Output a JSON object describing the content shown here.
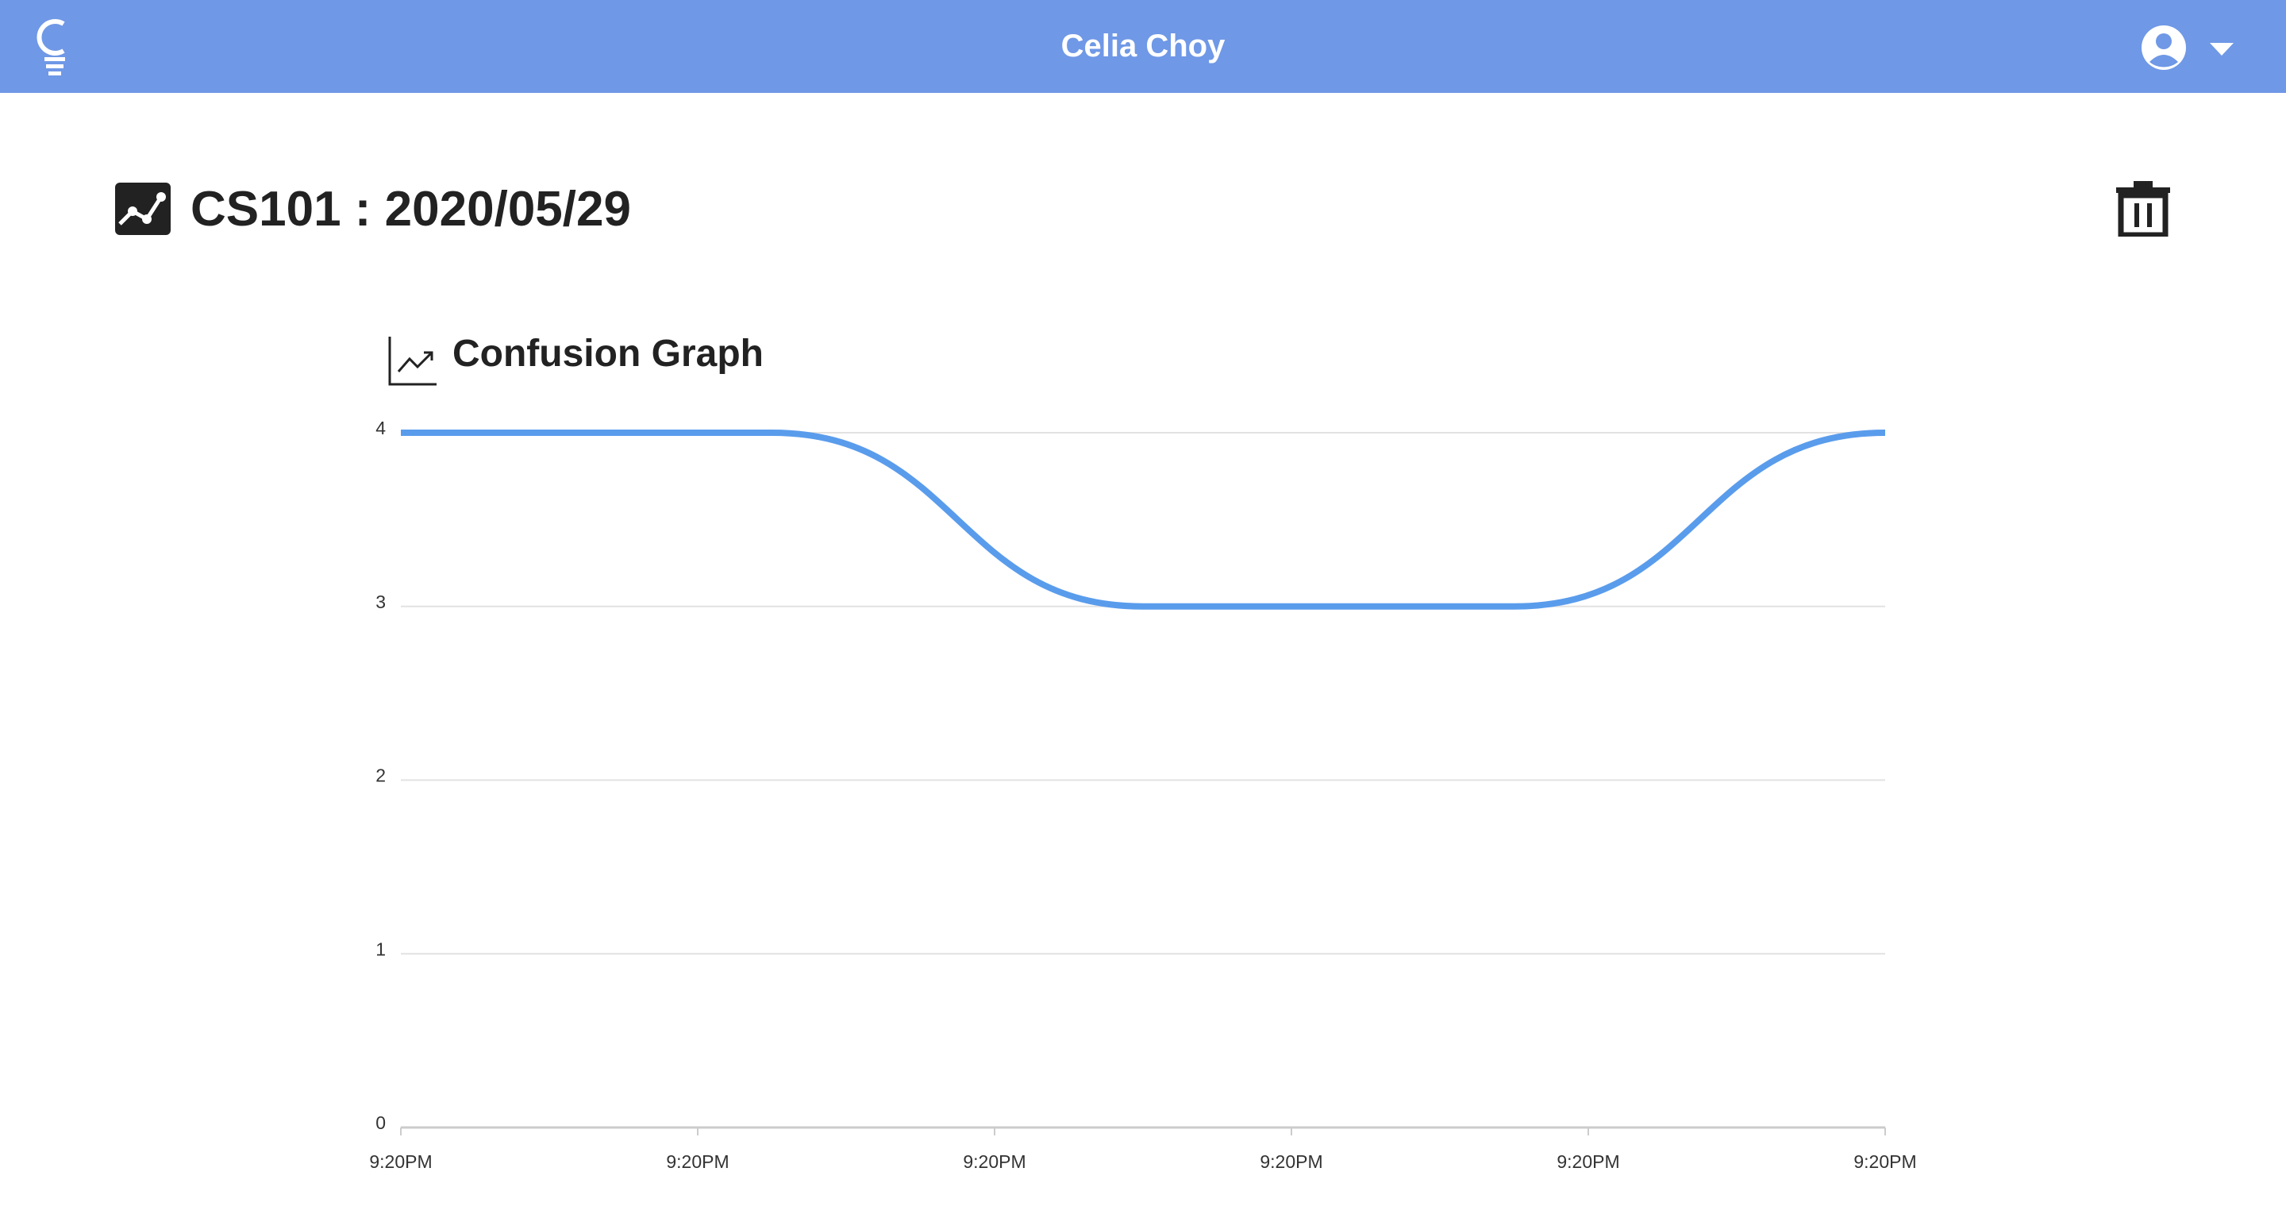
{
  "header": {
    "user_name": "Celia Choy"
  },
  "page": {
    "title": "CS101 : 2020/05/29"
  },
  "chart_data": {
    "type": "line",
    "title": "Confusion Graph",
    "values": [
      4,
      4,
      3,
      3,
      4
    ],
    "color": "#5a9cec",
    "xtick_labels": [
      "9:20PM",
      "9:20PM",
      "9:20PM",
      "9:20PM",
      "9:20PM",
      "9:20PM"
    ],
    "ylim": [
      0,
      4
    ],
    "yticks": [
      0,
      1,
      2,
      3,
      4
    ],
    "grid": true
  }
}
